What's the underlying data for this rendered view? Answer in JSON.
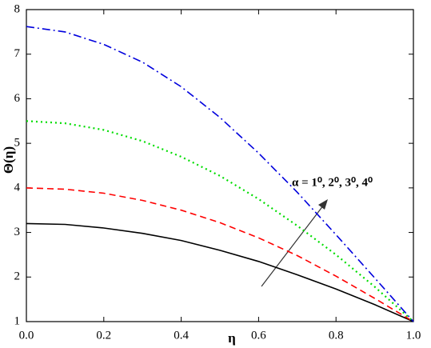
{
  "chart_data": {
    "type": "line",
    "x_label": "η",
    "y_label": "Θ(η)",
    "annotation": "α = 1⁰, 2⁰, 3⁰, 4⁰",
    "x": [
      0,
      0.1,
      0.2,
      0.3,
      0.4,
      0.5,
      0.6,
      0.7,
      0.8,
      0.9,
      1.0
    ],
    "series": [
      {
        "color": "#000000",
        "dash": "solid",
        "values": [
          3.2,
          3.18,
          3.1,
          2.98,
          2.82,
          2.6,
          2.35,
          2.05,
          1.73,
          1.38,
          1.0
        ]
      },
      {
        "color": "#ff0000",
        "dash": "dashed",
        "values": [
          4.0,
          3.97,
          3.88,
          3.72,
          3.5,
          3.22,
          2.88,
          2.48,
          2.02,
          1.52,
          1.0
        ]
      },
      {
        "color": "#00dd00",
        "dash": "dotted",
        "values": [
          5.5,
          5.45,
          5.3,
          5.05,
          4.7,
          4.27,
          3.75,
          3.15,
          2.5,
          1.78,
          1.0
        ]
      },
      {
        "color": "#0000dd",
        "dash": "dashdot",
        "values": [
          7.62,
          7.5,
          7.22,
          6.82,
          6.27,
          5.58,
          4.78,
          3.9,
          2.95,
          1.98,
          1.0
        ]
      }
    ],
    "xlim": [
      0,
      1.0
    ],
    "xticks": [
      {
        "value": 0,
        "label": "0.0"
      },
      0.2,
      0.4,
      0.6,
      0.8,
      {
        "value": 1.0,
        "label": "1.0"
      }
    ],
    "ylim": [
      1,
      8
    ],
    "yticks": [
      1,
      2,
      3,
      4,
      5,
      6,
      7,
      8
    ],
    "grid": false
  }
}
